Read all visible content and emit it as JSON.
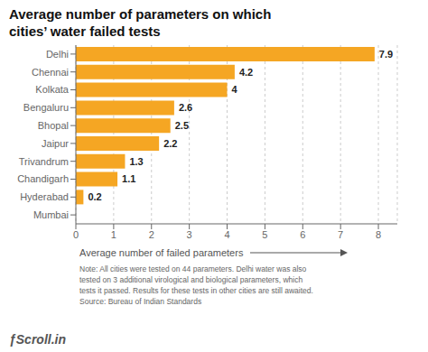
{
  "chart_data": {
    "type": "bar",
    "title": "Average number of parameters on which\ncities’ water failed tests",
    "categories": [
      "Delhi",
      "Chennai",
      "Kolkata",
      "Bengaluru",
      "Bhopal",
      "Jaipur",
      "Trivandrum",
      "Chandigarh",
      "Hyderabad",
      "Mumbai"
    ],
    "values": [
      7.9,
      4.2,
      4,
      2.6,
      2.5,
      2.2,
      1.3,
      1.1,
      0.2,
      0
    ],
    "color": "#F5A623",
    "orientation": "horizontal",
    "data_labels": true,
    "grid": true,
    "xlabel": "Average number of failed parameters",
    "xlim": [
      0,
      8.5
    ],
    "xticks": [
      0,
      1,
      2,
      3,
      4,
      5,
      6,
      7,
      8
    ],
    "annotations": [
      "Note: All cities were tested on 44 parameters. Delhi water was also\ntested on 3 additional virological and biological parameters, which\ntests it passed. Results for these tests in other cities are still awaited.\nSource: Bureau of Indian Standards",
      "ƒScroll.in"
    ]
  }
}
